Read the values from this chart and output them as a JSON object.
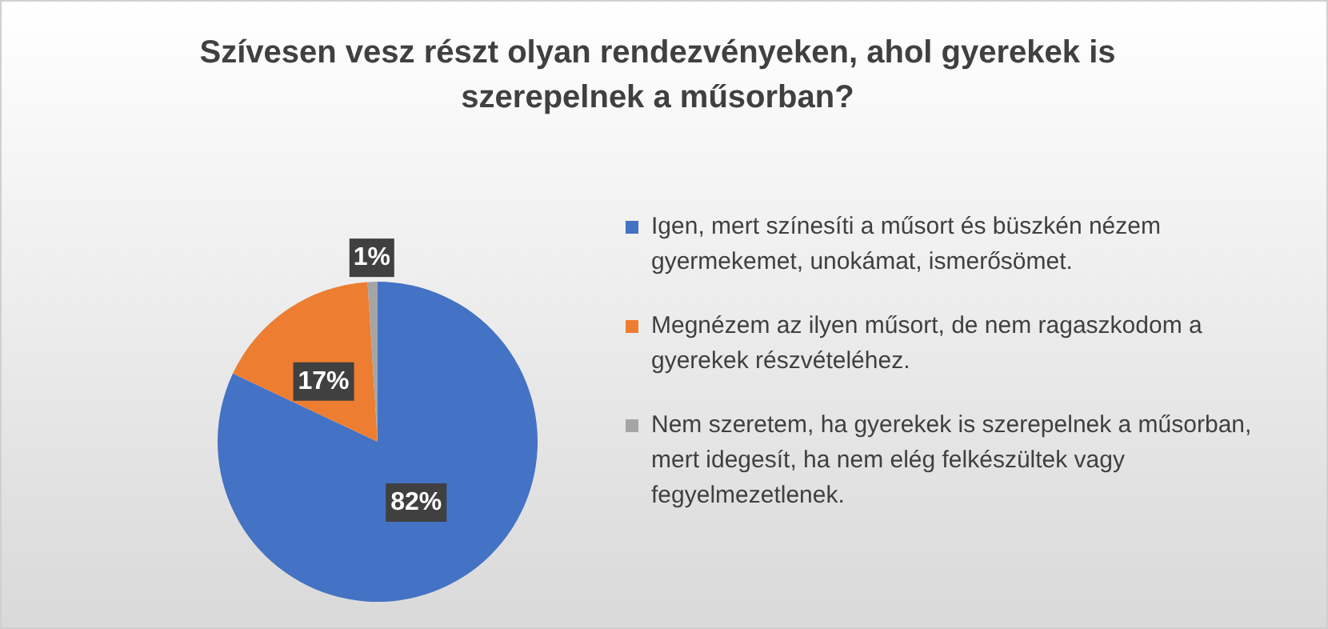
{
  "chart_data": {
    "type": "pie",
    "title": "Szívesen vesz részt olyan rendezvényeken, ahol gyerekek is szerepelnek a műsorban?",
    "categories": [
      "Igen, mert színesíti a műsort és büszkén nézem gyermekemet, unokámat, ismerősömet.",
      "Megnézem az ilyen műsort, de nem ragaszkodom a gyerekek részvételéhez.",
      "Nem szeretem, ha gyerekek is szerepelnek a műsorban, mert idegesít, ha nem elég felkészültek vagy fegyelmezetlenek."
    ],
    "values": [
      82,
      17,
      1
    ],
    "colors": [
      "#4472c4",
      "#ed7d31",
      "#a5a5a5"
    ],
    "value_labels": [
      "82%",
      "17%",
      "1%"
    ],
    "legend": "right"
  }
}
